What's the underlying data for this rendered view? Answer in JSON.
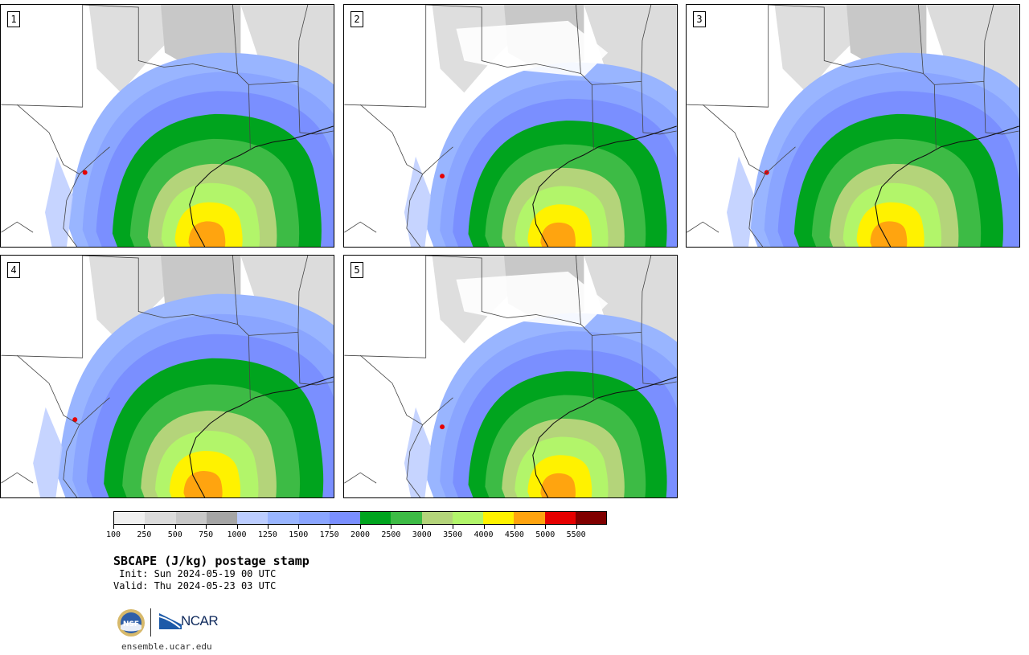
{
  "panels": [
    {
      "label": "1"
    },
    {
      "label": "2"
    },
    {
      "label": "3"
    },
    {
      "label": "4"
    },
    {
      "label": "5"
    }
  ],
  "colorbar": {
    "colors": [
      "#f0f0f0",
      "#dcdcdc",
      "#c8c8c8",
      "#a5a5a5",
      "#bccdff",
      "#99b5ff",
      "#8aa5ff",
      "#7a8fff",
      "#00a41e",
      "#3dbb45",
      "#b4d47a",
      "#b2f56a",
      "#fff200",
      "#ffa40f",
      "#e60000",
      "#800000"
    ],
    "tick_labels": [
      "100",
      "250",
      "500",
      "750",
      "1000",
      "1250",
      "1500",
      "1750",
      "2000",
      "2500",
      "3000",
      "3500",
      "4000",
      "4500",
      "5000",
      "5500"
    ]
  },
  "title": "SBCAPE (J/kg) postage stamp",
  "init": " Init: Sun 2024-05-19 00 UTC",
  "valid": "Valid: Thu 2024-05-23 03 UTC",
  "logo": {
    "ncar_text": "NCAR",
    "nsf_text": "NSF"
  },
  "site": "ensemble.ucar.edu"
}
